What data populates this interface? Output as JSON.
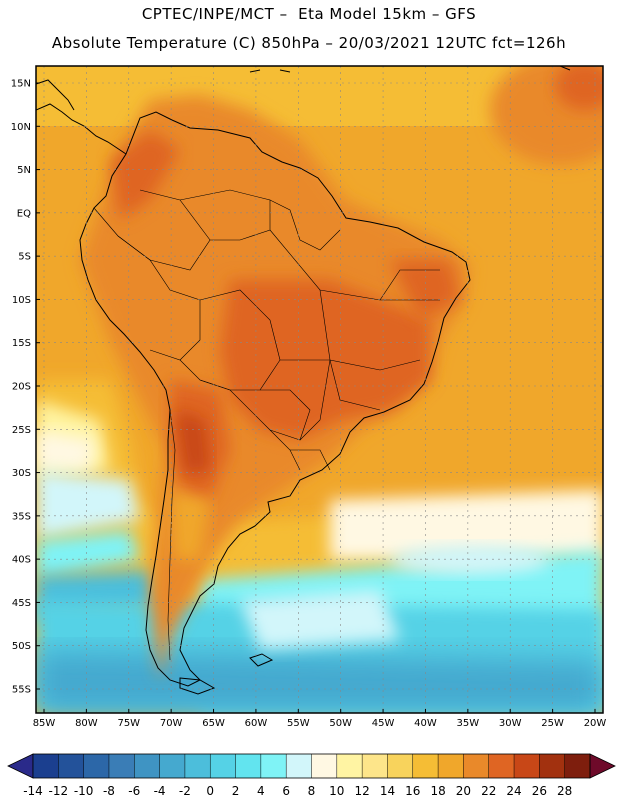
{
  "header": {
    "line1": "CPTEC/INPE/MCT –  Eta Model 15km – GFS",
    "line2": "Absolute Temperature (C) 850hPa – 20/03/2021 12UTC fct=126h"
  },
  "map": {
    "lat_labels": [
      "15N",
      "10N",
      "5N",
      "EQ",
      "5S",
      "10S",
      "15S",
      "20S",
      "25S",
      "30S",
      "35S",
      "40S",
      "45S",
      "50S",
      "55S"
    ],
    "lon_labels": [
      "85W",
      "80W",
      "75W",
      "70W",
      "65W",
      "60W",
      "55W",
      "50W",
      "45W",
      "40W",
      "35W",
      "30W",
      "25W",
      "20W"
    ]
  },
  "colorbar": {
    "labels": [
      "-14",
      "-12",
      "-10",
      "-8",
      "-6",
      "-4",
      "-2",
      "0",
      "2",
      "4",
      "6",
      "8",
      "10",
      "12",
      "14",
      "16",
      "18",
      "20",
      "22",
      "24",
      "26",
      "28"
    ],
    "colors": [
      "#1b3f8f",
      "#23529a",
      "#2c67a8",
      "#3a7db6",
      "#3f94c3",
      "#45a9cf",
      "#4cbedb",
      "#55d2e6",
      "#62e4ef",
      "#7ff3f6",
      "#d2f6fa",
      "#fff8e3",
      "#fff4a3",
      "#fde58a",
      "#f8d35c",
      "#f5bd35",
      "#f0a72b",
      "#e9892a",
      "#df6523",
      "#c84717",
      "#a2310f",
      "#7e1e0d"
    ],
    "under_color": "#2a2a8a",
    "over_color": "#6e0a2a"
  }
}
